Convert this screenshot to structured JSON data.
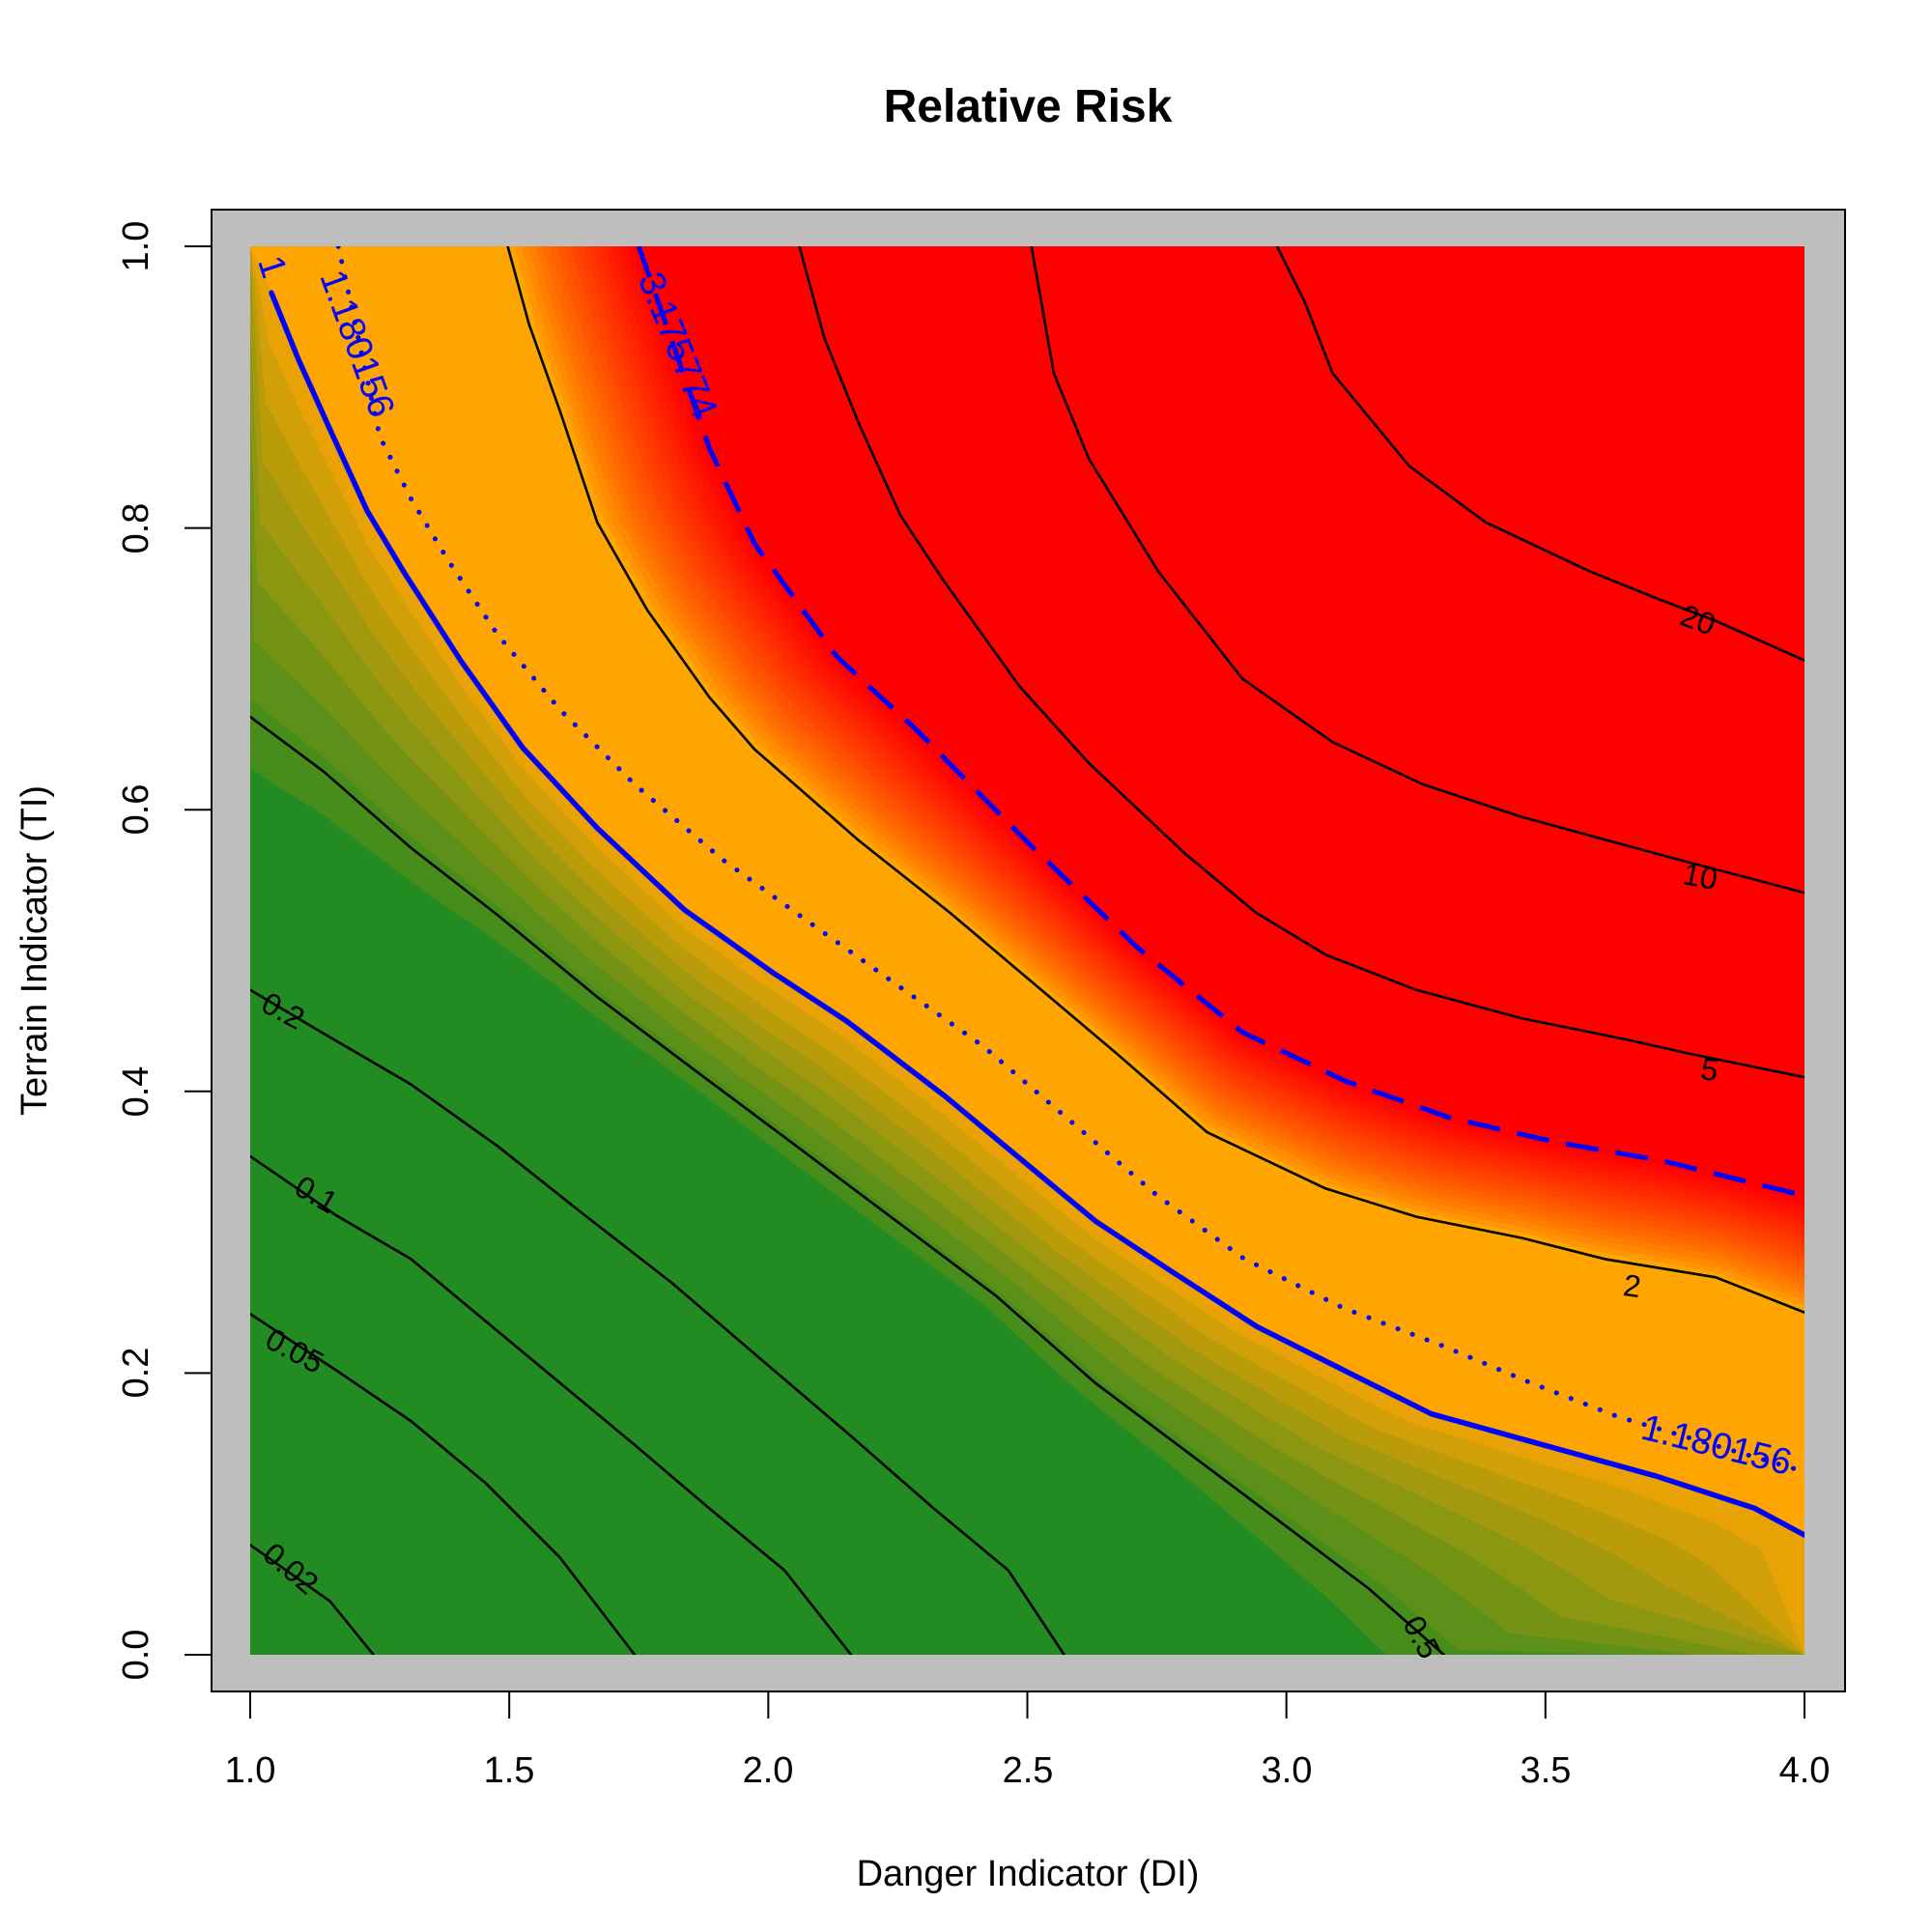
{
  "chart_data": {
    "type": "contour",
    "title": "Relative Risk",
    "xlabel": "Danger Indicator (DI)",
    "ylabel": "Terrain Indicator (TI)",
    "xlim": [
      1.0,
      4.0
    ],
    "ylim": [
      0.0,
      1.0
    ],
    "xticks": [
      "1.0",
      "1.5",
      "2.0",
      "2.5",
      "3.0",
      "3.5",
      "4.0"
    ],
    "yticks": [
      "0.0",
      "0.2",
      "0.4",
      "0.6",
      "0.8",
      "1.0"
    ],
    "colors": {
      "low": "#228B22",
      "mid": "#FFA500",
      "high": "#FF0000",
      "panel": "#BEBEBE",
      "blue": "#0000FF"
    },
    "contours": [
      {
        "level": "0.02",
        "style": "black",
        "points": [
          [
            1.0,
            0.078
          ],
          [
            1.154,
            0.038
          ],
          [
            1.238,
            0.0
          ]
        ]
      },
      {
        "level": "0.05",
        "style": "black",
        "points": [
          [
            1.0,
            0.242
          ],
          [
            1.166,
            0.202
          ],
          [
            1.31,
            0.166
          ],
          [
            1.454,
            0.122
          ],
          [
            1.598,
            0.069
          ],
          [
            1.742,
            0.0
          ]
        ]
      },
      {
        "level": "0.1",
        "style": "black",
        "points": [
          [
            1.0,
            0.354
          ],
          [
            1.166,
            0.312
          ],
          [
            1.31,
            0.281
          ],
          [
            1.454,
            0.237
          ],
          [
            1.598,
            0.193
          ],
          [
            1.742,
            0.149
          ],
          [
            1.886,
            0.104
          ],
          [
            2.031,
            0.06
          ],
          [
            2.16,
            0.0
          ]
        ]
      },
      {
        "level": "0.2",
        "style": "black",
        "points": [
          [
            1.0,
            0.472
          ],
          [
            1.142,
            0.441
          ],
          [
            1.31,
            0.405
          ],
          [
            1.478,
            0.361
          ],
          [
            1.646,
            0.312
          ],
          [
            1.814,
            0.264
          ],
          [
            1.982,
            0.211
          ],
          [
            2.151,
            0.158
          ],
          [
            2.319,
            0.104
          ],
          [
            2.463,
            0.06
          ],
          [
            2.571,
            0.0
          ]
        ]
      },
      {
        "level": "0.5",
        "style": "black",
        "points": [
          [
            1.0,
            0.666
          ],
          [
            1.142,
            0.627
          ],
          [
            1.31,
            0.573
          ],
          [
            1.478,
            0.525
          ],
          [
            1.67,
            0.467
          ],
          [
            1.862,
            0.414
          ],
          [
            2.055,
            0.361
          ],
          [
            2.247,
            0.308
          ],
          [
            2.439,
            0.255
          ],
          [
            2.631,
            0.193
          ],
          [
            2.823,
            0.14
          ],
          [
            3.015,
            0.087
          ],
          [
            3.159,
            0.047
          ],
          [
            3.304,
            0.0
          ]
        ]
      },
      {
        "level": "1",
        "style": "blue-solid",
        "points": [
          [
            1.041,
            0.967
          ],
          [
            1.094,
            0.919
          ],
          [
            1.154,
            0.87
          ],
          [
            1.226,
            0.812
          ],
          [
            1.298,
            0.768
          ],
          [
            1.406,
            0.706
          ],
          [
            1.526,
            0.644
          ],
          [
            1.67,
            0.587
          ],
          [
            1.838,
            0.529
          ],
          [
            2.006,
            0.485
          ],
          [
            2.151,
            0.45
          ],
          [
            2.343,
            0.396
          ],
          [
            2.487,
            0.352
          ],
          [
            2.631,
            0.308
          ],
          [
            2.775,
            0.273
          ],
          [
            2.943,
            0.233
          ],
          [
            3.111,
            0.202
          ],
          [
            3.28,
            0.171
          ],
          [
            3.496,
            0.149
          ],
          [
            3.712,
            0.127
          ],
          [
            3.904,
            0.104
          ],
          [
            4.0,
            0.085
          ]
        ]
      },
      {
        "level": "1.180156",
        "style": "blue-dotted",
        "points": [
          [
            1.17,
            1.0
          ],
          [
            1.25,
            0.865
          ],
          [
            1.31,
            0.821
          ],
          [
            1.382,
            0.777
          ],
          [
            1.478,
            0.724
          ],
          [
            1.598,
            0.671
          ],
          [
            1.742,
            0.618
          ],
          [
            1.91,
            0.565
          ],
          [
            2.079,
            0.52
          ],
          [
            2.247,
            0.476
          ],
          [
            2.415,
            0.432
          ],
          [
            2.583,
            0.379
          ],
          [
            2.751,
            0.326
          ],
          [
            2.919,
            0.281
          ],
          [
            3.111,
            0.246
          ],
          [
            3.304,
            0.219
          ],
          [
            3.472,
            0.193
          ],
          [
            3.64,
            0.169
          ],
          [
            4.0,
            0.13
          ]
        ]
      },
      {
        "level": "2",
        "style": "black",
        "points": [
          [
            1.497,
            1.0
          ],
          [
            1.538,
            0.945
          ],
          [
            1.598,
            0.883
          ],
          [
            1.67,
            0.804
          ],
          [
            1.766,
            0.742
          ],
          [
            1.886,
            0.68
          ],
          [
            1.973,
            0.643
          ],
          [
            2.175,
            0.578
          ],
          [
            2.35,
            0.527
          ],
          [
            2.511,
            0.477
          ],
          [
            2.672,
            0.427
          ],
          [
            2.847,
            0.371
          ],
          [
            3.076,
            0.331
          ],
          [
            3.251,
            0.311
          ],
          [
            3.453,
            0.296
          ],
          [
            3.614,
            0.281
          ],
          [
            3.829,
            0.268
          ],
          [
            4.0,
            0.243
          ]
        ]
      },
      {
        "level": "3.175774",
        "style": "blue-dashed",
        "points": [
          [
            1.75,
            1.0
          ],
          [
            1.886,
            0.857
          ],
          [
            1.973,
            0.789
          ],
          [
            2.134,
            0.708
          ],
          [
            2.282,
            0.658
          ],
          [
            2.511,
            0.573
          ],
          [
            2.713,
            0.502
          ],
          [
            2.915,
            0.442
          ],
          [
            3.116,
            0.407
          ],
          [
            3.318,
            0.381
          ],
          [
            3.52,
            0.364
          ],
          [
            3.722,
            0.351
          ],
          [
            4.0,
            0.326
          ]
        ]
      },
      {
        "level": "5",
        "style": "black",
        "points": [
          [
            2.06,
            1.0
          ],
          [
            2.108,
            0.935
          ],
          [
            2.175,
            0.874
          ],
          [
            2.255,
            0.809
          ],
          [
            2.336,
            0.764
          ],
          [
            2.484,
            0.688
          ],
          [
            2.619,
            0.633
          ],
          [
            2.807,
            0.568
          ],
          [
            2.941,
            0.527
          ],
          [
            3.076,
            0.497
          ],
          [
            3.251,
            0.472
          ],
          [
            3.453,
            0.452
          ],
          [
            3.654,
            0.437
          ],
          [
            3.775,
            0.427
          ],
          [
            4.0,
            0.41
          ]
        ]
      },
      {
        "level": "10",
        "style": "black",
        "points": [
          [
            2.508,
            1.0
          ],
          [
            2.551,
            0.91
          ],
          [
            2.619,
            0.849
          ],
          [
            2.753,
            0.769
          ],
          [
            2.915,
            0.693
          ],
          [
            3.089,
            0.648
          ],
          [
            3.264,
            0.618
          ],
          [
            3.453,
            0.595
          ],
          [
            3.722,
            0.568
          ],
          [
            3.856,
            0.555
          ],
          [
            4.0,
            0.541
          ]
        ]
      },
      {
        "level": "20",
        "style": "black",
        "points": [
          [
            2.982,
            1.0
          ],
          [
            3.036,
            0.96
          ],
          [
            3.089,
            0.91
          ],
          [
            3.237,
            0.844
          ],
          [
            3.385,
            0.804
          ],
          [
            3.587,
            0.769
          ],
          [
            3.722,
            0.749
          ],
          [
            3.829,
            0.734
          ],
          [
            4.0,
            0.706
          ]
        ]
      }
    ]
  }
}
